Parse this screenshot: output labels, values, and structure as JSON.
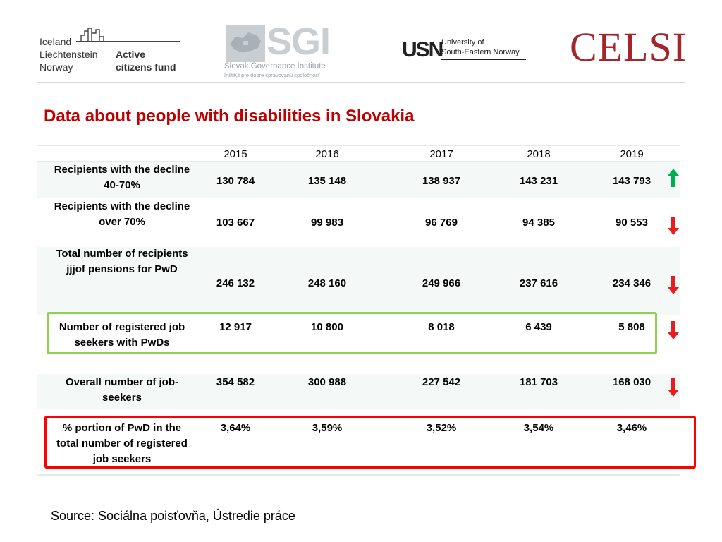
{
  "header": {
    "eea_logo": {
      "countries": [
        "Iceland",
        "Liechtenstein",
        "Norway"
      ],
      "fund_lines": [
        "Active",
        "citizens fund"
      ]
    },
    "sgi_logo": {
      "letters": "SGI",
      "name": "Slovak Governance Institute",
      "subtitle": "Inštitút pre dobre spravovanú spoločnosť"
    },
    "usn_logo": {
      "mark": "USN",
      "name_lines": [
        "University of",
        "South-Eastern Norway"
      ]
    },
    "celsi_logo": {
      "text": "CELSI"
    }
  },
  "title": "Data about people with disabilities in Slovakia",
  "table": {
    "years": [
      "2015",
      "2016",
      "2017",
      "2018",
      "2019"
    ],
    "rows": [
      {
        "label_lines": [
          "Recipients with the decline",
          "40-70%"
        ],
        "values": [
          "130 784",
          "135 148",
          "138 937",
          "143 231",
          "143 793"
        ],
        "trend": "up"
      },
      {
        "label_lines": [
          "Recipients with the decline",
          "over 70%"
        ],
        "values": [
          "103 667",
          "99 983",
          "96 769",
          "94 385",
          "90 553"
        ],
        "trend": "down"
      },
      {
        "label_lines": [
          "Total number of recipients",
          "jjjof pensions for PwD"
        ],
        "values": [
          "246 132",
          "248 160",
          "249 966",
          "237 616",
          "234 346"
        ],
        "trend": "down"
      },
      {
        "label_lines": [
          "Number of registered job",
          "seekers with PwDs"
        ],
        "values": [
          "12 917",
          "10 800",
          "8 018",
          "6 439",
          "5 808"
        ],
        "trend": "down"
      },
      {
        "label_lines": [
          "Overall number of job-",
          "seekers"
        ],
        "values": [
          "354 582",
          "300 988",
          "227 542",
          "181 703",
          "168 030"
        ],
        "trend": "down"
      },
      {
        "label_lines": [
          "% portion of PwD in the",
          "total number of registered",
          "job seekers"
        ],
        "values": [
          "3,64%",
          "3,59%",
          "3,52%",
          "3,54%",
          "3,46%"
        ],
        "trend": "none"
      }
    ]
  },
  "colors": {
    "title": "#c00000",
    "highlight_green": "#92d050",
    "highlight_red": "#ff0000",
    "arrow_up": "#00b050",
    "arrow_down": "#e81e1e",
    "band": "#f4f8f7"
  },
  "source": "Source: Sociálna poisťovňa, Ústredie práce"
}
